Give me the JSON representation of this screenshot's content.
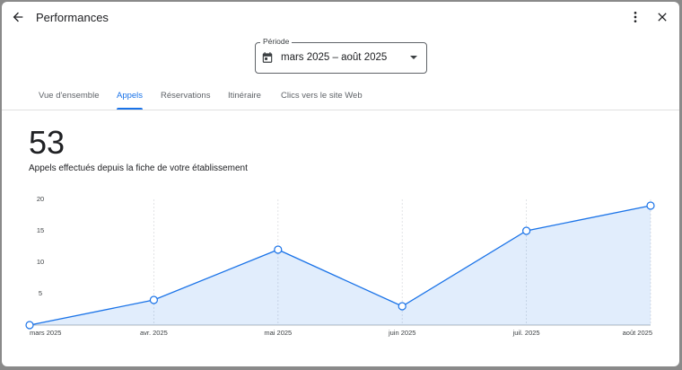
{
  "header": {
    "title": "Performances"
  },
  "period": {
    "label": "Période",
    "value": "mars 2025 – août 2025"
  },
  "tabs": [
    "Vue d'ensemble",
    "Appels",
    "Réservations",
    "Itinéraire",
    "Clics vers le site Web"
  ],
  "active_tab": 1,
  "summary": {
    "total": 53,
    "caption": "Appels effectués depuis la fiche de votre établissement"
  },
  "chart_data": {
    "type": "line",
    "categories": [
      "mars 2025",
      "avr. 2025",
      "mai 2025",
      "juin 2025",
      "juil. 2025",
      "août 2025"
    ],
    "values": [
      0,
      4,
      12,
      3,
      15,
      19
    ],
    "color": "#1a73e8",
    "area": true,
    "ylim": [
      0,
      20
    ],
    "yticks": [
      5,
      10,
      15,
      20
    ]
  }
}
